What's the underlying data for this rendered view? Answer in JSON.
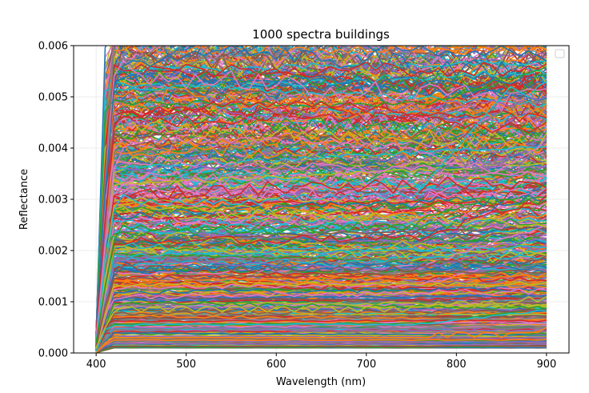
{
  "chart_data": {
    "type": "line",
    "title": "1000 spectra buildings",
    "xlabel": "Wavelength (nm)",
    "ylabel": "Reflectance",
    "xlim": [
      375,
      925
    ],
    "ylim": [
      0,
      0.006
    ],
    "xticks": [
      400,
      500,
      600,
      700,
      800,
      900
    ],
    "xtick_labels": [
      "400",
      "500",
      "600",
      "700",
      "800",
      "900"
    ],
    "yticks": [
      0,
      0.001,
      0.002,
      0.003,
      0.004,
      0.005,
      0.006
    ],
    "ytick_labels": [
      "0.000",
      "0.001",
      "0.002",
      "0.003",
      "0.004",
      "0.005",
      "0.006"
    ],
    "grid": true,
    "legend": {
      "placement": "top-right",
      "entries": []
    },
    "x": [
      400,
      410,
      420,
      430,
      440,
      450,
      460,
      470,
      480,
      490,
      500,
      510,
      520,
      530,
      540,
      550,
      560,
      570,
      580,
      590,
      600,
      610,
      620,
      630,
      640,
      650,
      660,
      670,
      680,
      690,
      700,
      710,
      720,
      730,
      740,
      750,
      760,
      770,
      780,
      790,
      800,
      810,
      820,
      830,
      840,
      850,
      860,
      870,
      880,
      890,
      900
    ],
    "series_count": 1000,
    "series_colors": [
      "#1f77b4",
      "#ff7f0e",
      "#2ca02c",
      "#d62728",
      "#9467bd",
      "#8c564b",
      "#e377c2",
      "#7f7f7f",
      "#bcbd22",
      "#17becf"
    ],
    "series_level_range": [
      0.0001,
      0.0062
    ],
    "series": [
      {
        "values": [
          0.0005,
          0.0031,
          0.0052,
          0.0056,
          0.0057,
          0.0057,
          0.0056,
          0.0057,
          0.0058,
          0.0057,
          0.0058,
          0.0059,
          0.0058,
          0.0059,
          0.0059,
          0.006,
          0.0059,
          0.0059,
          0.006,
          0.006,
          0.006,
          0.0061,
          0.006,
          0.006,
          0.0061,
          0.006,
          0.0061,
          0.006,
          0.006,
          0.0061,
          0.006,
          0.0059,
          0.006,
          0.006,
          0.0059,
          0.0059,
          0.006,
          0.0059,
          0.0058,
          0.0059,
          0.0058,
          0.0058,
          0.0059,
          0.0058,
          0.0059,
          0.006,
          0.0059,
          0.0058,
          0.0059,
          0.0058,
          0.0057
        ]
      },
      {
        "values": [
          0.0004,
          0.0026,
          0.0044,
          0.0047,
          0.0047,
          0.0046,
          0.0047,
          0.0048,
          0.0047,
          0.0048,
          0.0048,
          0.0047,
          0.0048,
          0.0049,
          0.0048,
          0.0049,
          0.0049,
          0.0048,
          0.0049,
          0.0048,
          0.0049,
          0.0048,
          0.0049,
          0.0049,
          0.0048,
          0.0049,
          0.0048,
          0.0048,
          0.0049,
          0.0048,
          0.0047,
          0.0048,
          0.0048,
          0.0047,
          0.0047,
          0.0046,
          0.0047,
          0.0046,
          0.0046,
          0.0045,
          0.0045,
          0.0044,
          0.0045,
          0.0044,
          0.0043,
          0.0044,
          0.0045,
          0.0044,
          0.0043,
          0.0044,
          0.0045
        ]
      },
      {
        "values": [
          0.0003,
          0.0021,
          0.0036,
          0.004,
          0.0041,
          0.0041,
          0.0042,
          0.0041,
          0.0042,
          0.0042,
          0.0041,
          0.0042,
          0.0042,
          0.0041,
          0.0042,
          0.0041,
          0.0042,
          0.0042,
          0.0041,
          0.0042,
          0.0042,
          0.0041,
          0.0041,
          0.0042,
          0.0041,
          0.0041,
          0.0042,
          0.0041,
          0.0041,
          0.004,
          0.0041,
          0.004,
          0.004,
          0.0041,
          0.004,
          0.004,
          0.0039,
          0.0039,
          0.0038,
          0.0037,
          0.0037,
          0.0036,
          0.0037,
          0.0036,
          0.0035,
          0.0036,
          0.0037,
          0.0038,
          0.0039,
          0.004,
          0.0042
        ]
      },
      {
        "values": [
          0.0002,
          0.0017,
          0.0028,
          0.0031,
          0.003,
          0.0029,
          0.003,
          0.0029,
          0.0029,
          0.003,
          0.0029,
          0.0029,
          0.003,
          0.0029,
          0.003,
          0.0029,
          0.0029,
          0.003,
          0.0029,
          0.003,
          0.003,
          0.0031,
          0.003,
          0.0031,
          0.003,
          0.003,
          0.0031,
          0.003,
          0.0031,
          0.003,
          0.0031,
          0.0031,
          0.003,
          0.0031,
          0.0031,
          0.003,
          0.0032,
          0.0034,
          0.0036,
          0.0038,
          0.004,
          0.0042,
          0.0044,
          0.0046,
          0.0048,
          0.005,
          0.0052,
          0.0051,
          0.005,
          0.0052,
          0.0053
        ]
      },
      {
        "values": [
          0.0002,
          0.0013,
          0.0022,
          0.0025,
          0.0024,
          0.0025,
          0.0024,
          0.0024,
          0.0025,
          0.0024,
          0.0024,
          0.0025,
          0.0024,
          0.0024,
          0.0025,
          0.0024,
          0.0025,
          0.0024,
          0.0024,
          0.0025,
          0.0024,
          0.0024,
          0.0025,
          0.0024,
          0.0024,
          0.0025,
          0.0024,
          0.0024,
          0.0025,
          0.0024,
          0.0024,
          0.0025,
          0.0024,
          0.0025,
          0.0025,
          0.0024,
          0.0026,
          0.0027,
          0.0027,
          0.0028,
          0.0028,
          0.0029,
          0.0029,
          0.003,
          0.0029,
          0.003,
          0.003,
          0.0029,
          0.003,
          0.0029,
          0.003
        ]
      },
      {
        "values": [
          0.0001,
          0.0009,
          0.0015,
          0.0017,
          0.0017,
          0.0016,
          0.0017,
          0.0017,
          0.0016,
          0.0017,
          0.0017,
          0.0016,
          0.0017,
          0.0016,
          0.0017,
          0.0016,
          0.0017,
          0.0016,
          0.0016,
          0.0017,
          0.0016,
          0.0017,
          0.0016,
          0.0016,
          0.0017,
          0.0016,
          0.0016,
          0.0017,
          0.0016,
          0.0016,
          0.0017,
          0.0016,
          0.0016,
          0.0017,
          0.0016,
          0.0016,
          0.0017,
          0.0017,
          0.0018,
          0.0018,
          0.0018,
          0.0017,
          0.0018,
          0.0018,
          0.0017,
          0.0018,
          0.0018,
          0.0017,
          0.0018,
          0.0018,
          0.0019
        ]
      },
      {
        "values": [
          0.0001,
          0.0005,
          0.0008,
          0.0009,
          0.0009,
          0.0008,
          0.0009,
          0.0009,
          0.0008,
          0.0009,
          0.0009,
          0.0008,
          0.0009,
          0.0009,
          0.0008,
          0.0009,
          0.0009,
          0.0008,
          0.0009,
          0.0008,
          0.0009,
          0.0009,
          0.0008,
          0.0009,
          0.0008,
          0.0009,
          0.0009,
          0.0008,
          0.0009,
          0.0008,
          0.0009,
          0.0009,
          0.0008,
          0.0009,
          0.0008,
          0.0009,
          0.0009,
          0.0009,
          0.001,
          0.0009,
          0.001,
          0.001,
          0.0009,
          0.001,
          0.001,
          0.0009,
          0.001,
          0.001,
          0.0011,
          0.001,
          0.0011
        ]
      },
      {
        "values": [
          0.0,
          0.0002,
          0.0003,
          0.0003,
          0.0003,
          0.0003,
          0.0003,
          0.0003,
          0.0003,
          0.0003,
          0.0003,
          0.0003,
          0.0003,
          0.0003,
          0.0003,
          0.0003,
          0.0003,
          0.0003,
          0.0003,
          0.0003,
          0.0003,
          0.0003,
          0.0003,
          0.0003,
          0.0003,
          0.0003,
          0.0003,
          0.0003,
          0.0003,
          0.0003,
          0.0003,
          0.0003,
          0.0003,
          0.0003,
          0.0003,
          0.0003,
          0.0003,
          0.0003,
          0.0004,
          0.0003,
          0.0004,
          0.0004,
          0.0003,
          0.0004,
          0.0004,
          0.0003,
          0.0004,
          0.0004,
          0.0004,
          0.0004,
          0.0005
        ]
      }
    ]
  }
}
